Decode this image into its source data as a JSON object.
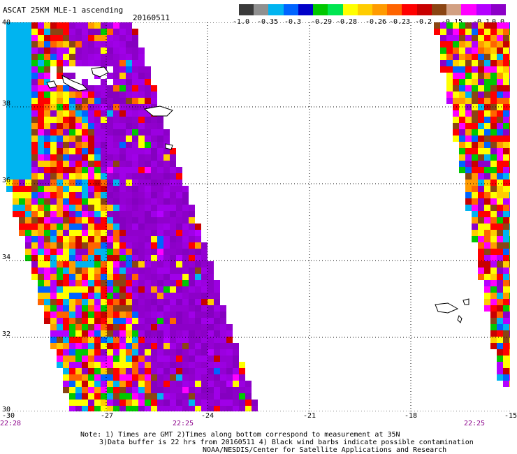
{
  "header": {
    "title": "ASCAT 25KM MLE-1 ascending",
    "date": "20160511"
  },
  "colorbar": {
    "colors": [
      "#3a3a3a",
      "#909090",
      "#00b4f0",
      "#0064ff",
      "#0000c8",
      "#00c800",
      "#00e650",
      "#ffff00",
      "#ffcd00",
      "#ff9b00",
      "#ff6400",
      "#ff0000",
      "#c80000",
      "#8b4513",
      "#d2a082",
      "#ff00ff",
      "#b400ff",
      "#8c00c8"
    ],
    "ticks": [
      "-1.0",
      "-0.35",
      "-0.3",
      "-0.29",
      "-0.28",
      "-0.26",
      "-0.23",
      "-0.2",
      "-0.15",
      "-0.1",
      "0.0"
    ]
  },
  "axes": {
    "lat_labels": [
      "40",
      "38",
      "36",
      "34",
      "32",
      "30"
    ],
    "lon_labels": [
      "-30",
      "-27",
      "-24",
      "-21",
      "-18",
      "-15"
    ]
  },
  "times": [
    "22:28",
    "22:25",
    "22:25"
  ],
  "notes": [
    "Note: 1) Times are GMT 2)Times along bottom correspond to measurement at 35N",
    "3)Data buffer is 22 hrs from 20160511 4) Black wind barbs indicate possible contamination",
    "NOAA/NESDIS/Center for Satellite Applications and Research"
  ]
}
